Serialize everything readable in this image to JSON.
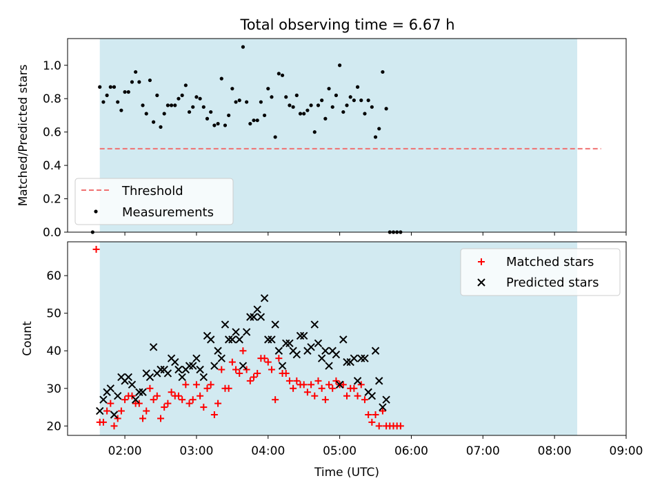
{
  "title": "Total observing time = 6.67 h",
  "colors": {
    "shade": "#add8e6",
    "threshold": "#f07070",
    "measurements": "#000000",
    "matched": "#ff0000",
    "predicted": "#000000"
  },
  "chart_data": [
    {
      "type": "scatter",
      "title": "Total observing time = 6.67 h",
      "xlabel": "",
      "ylabel": "Matched/Predicted stars",
      "xlim": [
        "01:12",
        "09:00"
      ],
      "ylim": [
        0,
        1.16
      ],
      "x_tick_labels_visible": false,
      "y_ticks": [
        0.0,
        0.2,
        0.4,
        0.6,
        0.8,
        1.0
      ],
      "y_tick_labels": [
        "0.0",
        "0.2",
        "0.4",
        "0.6",
        "0.8",
        "1.0"
      ],
      "observing_window": [
        "01:39",
        "08:19"
      ],
      "legend": {
        "placement": "lower-left",
        "entries": [
          "Threshold",
          "Measurements"
        ]
      },
      "threshold": {
        "name": "Threshold",
        "value": 0.5,
        "x_range": [
          "01:39",
          "08:39"
        ],
        "style": "dashed"
      },
      "series": [
        {
          "name": "Measurements",
          "points": [
            [
              "01:33",
              0.0
            ],
            [
              "01:39",
              0.87
            ],
            [
              "01:42",
              0.78
            ],
            [
              "01:45",
              0.82
            ],
            [
              "01:48",
              0.87
            ],
            [
              "01:51",
              0.87
            ],
            [
              "01:54",
              0.78
            ],
            [
              "01:57",
              0.73
            ],
            [
              "02:00",
              0.84
            ],
            [
              "02:03",
              0.84
            ],
            [
              "02:06",
              0.9
            ],
            [
              "02:09",
              0.96
            ],
            [
              "02:12",
              0.9
            ],
            [
              "02:15",
              0.76
            ],
            [
              "02:18",
              0.71
            ],
            [
              "02:21",
              0.91
            ],
            [
              "02:24",
              0.66
            ],
            [
              "02:27",
              0.82
            ],
            [
              "02:30",
              0.63
            ],
            [
              "02:33",
              0.71
            ],
            [
              "02:36",
              0.76
            ],
            [
              "02:39",
              0.76
            ],
            [
              "02:42",
              0.76
            ],
            [
              "02:45",
              0.8
            ],
            [
              "02:48",
              0.82
            ],
            [
              "02:51",
              0.88
            ],
            [
              "02:54",
              0.72
            ],
            [
              "02:57",
              0.75
            ],
            [
              "03:00",
              0.81
            ],
            [
              "03:03",
              0.8
            ],
            [
              "03:06",
              0.75
            ],
            [
              "03:09",
              0.68
            ],
            [
              "03:12",
              0.72
            ],
            [
              "03:15",
              0.64
            ],
            [
              "03:18",
              0.65
            ],
            [
              "03:21",
              0.92
            ],
            [
              "03:24",
              0.64
            ],
            [
              "03:27",
              0.7
            ],
            [
              "03:30",
              0.86
            ],
            [
              "03:33",
              0.78
            ],
            [
              "03:36",
              0.79
            ],
            [
              "03:39",
              1.11
            ],
            [
              "03:42",
              0.78
            ],
            [
              "03:45",
              0.65
            ],
            [
              "03:48",
              0.67
            ],
            [
              "03:51",
              0.67
            ],
            [
              "03:54",
              0.78
            ],
            [
              "03:57",
              0.7
            ],
            [
              "04:00",
              0.86
            ],
            [
              "04:03",
              0.81
            ],
            [
              "04:06",
              0.57
            ],
            [
              "04:09",
              0.95
            ],
            [
              "04:12",
              0.94
            ],
            [
              "04:15",
              0.81
            ],
            [
              "04:18",
              0.76
            ],
            [
              "04:21",
              0.75
            ],
            [
              "04:24",
              0.82
            ],
            [
              "04:27",
              0.71
            ],
            [
              "04:30",
              0.71
            ],
            [
              "04:33",
              0.73
            ],
            [
              "04:36",
              0.76
            ],
            [
              "04:39",
              0.6
            ],
            [
              "04:42",
              0.76
            ],
            [
              "04:45",
              0.79
            ],
            [
              "04:48",
              0.68
            ],
            [
              "04:51",
              0.86
            ],
            [
              "04:54",
              0.75
            ],
            [
              "04:57",
              0.82
            ],
            [
              "05:00",
              1.0
            ],
            [
              "05:03",
              0.72
            ],
            [
              "05:06",
              0.76
            ],
            [
              "05:09",
              0.81
            ],
            [
              "05:12",
              0.79
            ],
            [
              "05:15",
              0.87
            ],
            [
              "05:18",
              0.79
            ],
            [
              "05:21",
              0.71
            ],
            [
              "05:24",
              0.79
            ],
            [
              "05:27",
              0.75
            ],
            [
              "05:30",
              0.57
            ],
            [
              "05:33",
              0.62
            ],
            [
              "05:36",
              0.96
            ],
            [
              "05:39",
              0.74
            ],
            [
              "05:42",
              0.0
            ],
            [
              "05:45",
              0.0
            ],
            [
              "05:48",
              0.0
            ],
            [
              "05:51",
              0.0
            ]
          ]
        }
      ]
    },
    {
      "type": "scatter",
      "xlabel": "Time (UTC)",
      "ylabel": "Count",
      "xlim": [
        "01:12",
        "09:00"
      ],
      "ylim": [
        17.5,
        69
      ],
      "x_ticks": [
        "02:00",
        "03:00",
        "04:00",
        "05:00",
        "06:00",
        "07:00",
        "08:00",
        "09:00"
      ],
      "y_ticks": [
        20,
        30,
        40,
        50,
        60
      ],
      "y_tick_labels": [
        "20",
        "30",
        "40",
        "50",
        "60"
      ],
      "observing_window": [
        "01:39",
        "08:19"
      ],
      "legend": {
        "placement": "top-right",
        "entries": [
          "Matched stars",
          "Predicted stars"
        ]
      },
      "series": [
        {
          "name": "Matched stars",
          "marker": "+",
          "points": [
            [
              "01:36",
              67
            ],
            [
              "01:39",
              21
            ],
            [
              "01:42",
              21
            ],
            [
              "01:45",
              24
            ],
            [
              "01:48",
              26
            ],
            [
              "01:51",
              20
            ],
            [
              "01:54",
              22
            ],
            [
              "01:57",
              24
            ],
            [
              "02:00",
              27
            ],
            [
              "02:03",
              28
            ],
            [
              "02:06",
              28
            ],
            [
              "02:09",
              26
            ],
            [
              "02:12",
              26
            ],
            [
              "02:15",
              22
            ],
            [
              "02:18",
              24
            ],
            [
              "02:21",
              30
            ],
            [
              "02:24",
              27
            ],
            [
              "02:27",
              28
            ],
            [
              "02:30",
              22
            ],
            [
              "02:33",
              25
            ],
            [
              "02:36",
              26
            ],
            [
              "02:39",
              29
            ],
            [
              "02:42",
              28
            ],
            [
              "02:45",
              28
            ],
            [
              "02:48",
              27
            ],
            [
              "02:51",
              31
            ],
            [
              "02:54",
              26
            ],
            [
              "02:57",
              27
            ],
            [
              "03:00",
              31
            ],
            [
              "03:03",
              28
            ],
            [
              "03:06",
              25
            ],
            [
              "03:09",
              30
            ],
            [
              "03:12",
              31
            ],
            [
              "03:15",
              23
            ],
            [
              "03:18",
              26
            ],
            [
              "03:21",
              35
            ],
            [
              "03:24",
              30
            ],
            [
              "03:27",
              30
            ],
            [
              "03:30",
              37
            ],
            [
              "03:33",
              35
            ],
            [
              "03:36",
              34
            ],
            [
              "03:39",
              40
            ],
            [
              "03:42",
              35
            ],
            [
              "03:45",
              32
            ],
            [
              "03:48",
              33
            ],
            [
              "03:51",
              34
            ],
            [
              "03:54",
              38
            ],
            [
              "03:57",
              38
            ],
            [
              "04:00",
              37
            ],
            [
              "04:03",
              35
            ],
            [
              "04:06",
              27
            ],
            [
              "04:09",
              38
            ],
            [
              "04:12",
              34
            ],
            [
              "04:15",
              34
            ],
            [
              "04:18",
              32
            ],
            [
              "04:21",
              30
            ],
            [
              "04:24",
              32
            ],
            [
              "04:27",
              31
            ],
            [
              "04:30",
              31
            ],
            [
              "04:33",
              29
            ],
            [
              "04:36",
              31
            ],
            [
              "04:39",
              28
            ],
            [
              "04:42",
              32
            ],
            [
              "04:45",
              30
            ],
            [
              "04:48",
              27
            ],
            [
              "04:51",
              31
            ],
            [
              "04:54",
              30
            ],
            [
              "04:57",
              32
            ],
            [
              "05:00",
              31
            ],
            [
              "05:03",
              31
            ],
            [
              "05:06",
              28
            ],
            [
              "05:09",
              30
            ],
            [
              "05:12",
              30
            ],
            [
              "05:15",
              28
            ],
            [
              "05:18",
              31
            ],
            [
              "05:21",
              27
            ],
            [
              "05:24",
              23
            ],
            [
              "05:27",
              21
            ],
            [
              "05:30",
              23
            ],
            [
              "05:33",
              20
            ],
            [
              "05:36",
              24
            ],
            [
              "05:39",
              20
            ],
            [
              "05:42",
              20
            ],
            [
              "05:45",
              20
            ],
            [
              "05:48",
              20
            ],
            [
              "05:51",
              20
            ]
          ]
        },
        {
          "name": "Predicted stars",
          "marker": "x",
          "points": [
            [
              "01:39",
              24
            ],
            [
              "01:42",
              27
            ],
            [
              "01:45",
              29
            ],
            [
              "01:48",
              30
            ],
            [
              "01:51",
              23
            ],
            [
              "01:54",
              28
            ],
            [
              "01:57",
              33
            ],
            [
              "02:00",
              32
            ],
            [
              "02:03",
              33
            ],
            [
              "02:06",
              31
            ],
            [
              "02:09",
              27
            ],
            [
              "02:12",
              29
            ],
            [
              "02:15",
              29
            ],
            [
              "02:18",
              34
            ],
            [
              "02:21",
              33
            ],
            [
              "02:24",
              41
            ],
            [
              "02:27",
              34
            ],
            [
              "02:30",
              35
            ],
            [
              "02:33",
              35
            ],
            [
              "02:36",
              34
            ],
            [
              "02:39",
              38
            ],
            [
              "02:42",
              37
            ],
            [
              "02:45",
              35
            ],
            [
              "02:48",
              33
            ],
            [
              "02:51",
              35
            ],
            [
              "02:54",
              36
            ],
            [
              "02:57",
              36
            ],
            [
              "03:00",
              38
            ],
            [
              "03:03",
              35
            ],
            [
              "03:06",
              33
            ],
            [
              "03:09",
              44
            ],
            [
              "03:12",
              43
            ],
            [
              "03:15",
              36
            ],
            [
              "03:18",
              40
            ],
            [
              "03:21",
              38
            ],
            [
              "03:24",
              47
            ],
            [
              "03:27",
              43
            ],
            [
              "03:30",
              43
            ],
            [
              "03:33",
              45
            ],
            [
              "03:36",
              43
            ],
            [
              "03:39",
              36
            ],
            [
              "03:42",
              45
            ],
            [
              "03:45",
              49
            ],
            [
              "03:48",
              49
            ],
            [
              "03:51",
              51
            ],
            [
              "03:54",
              49
            ],
            [
              "03:57",
              54
            ],
            [
              "04:00",
              43
            ],
            [
              "04:03",
              43
            ],
            [
              "04:06",
              47
            ],
            [
              "04:09",
              40
            ],
            [
              "04:12",
              36
            ],
            [
              "04:15",
              42
            ],
            [
              "04:18",
              42
            ],
            [
              "04:21",
              40
            ],
            [
              "04:24",
              39
            ],
            [
              "04:27",
              44
            ],
            [
              "04:30",
              44
            ],
            [
              "04:33",
              40
            ],
            [
              "04:36",
              41
            ],
            [
              "04:39",
              47
            ],
            [
              "04:42",
              42
            ],
            [
              "04:45",
              38
            ],
            [
              "04:48",
              40
            ],
            [
              "04:51",
              36
            ],
            [
              "04:54",
              40
            ],
            [
              "04:57",
              39
            ],
            [
              "05:00",
              31
            ],
            [
              "05:03",
              43
            ],
            [
              "05:06",
              37
            ],
            [
              "05:09",
              37
            ],
            [
              "05:12",
              38
            ],
            [
              "05:15",
              32
            ],
            [
              "05:18",
              38
            ],
            [
              "05:21",
              38
            ],
            [
              "05:24",
              29
            ],
            [
              "05:27",
              28
            ],
            [
              "05:30",
              40
            ],
            [
              "05:33",
              32
            ],
            [
              "05:36",
              25
            ],
            [
              "05:39",
              27
            ]
          ]
        }
      ]
    }
  ]
}
